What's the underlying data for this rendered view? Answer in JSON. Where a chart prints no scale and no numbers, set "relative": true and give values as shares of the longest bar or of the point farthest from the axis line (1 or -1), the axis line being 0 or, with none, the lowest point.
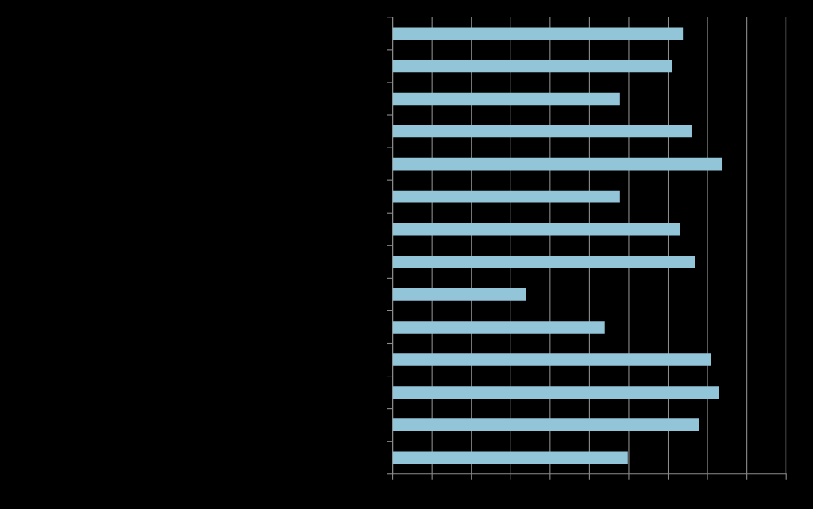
{
  "chart_data": {
    "type": "bar",
    "orientation": "horizontal",
    "relative": true,
    "grid": "x",
    "categories": [
      null,
      null,
      null,
      null,
      null,
      null,
      null,
      null,
      null,
      null,
      null,
      null,
      null,
      null
    ],
    "values": [
      0.88,
      0.846,
      0.689,
      0.906,
      1,
      0.689,
      0.87,
      0.918,
      0.405,
      0.643,
      0.964,
      0.99,
      0.928,
      0.713
    ],
    "color": "#92c5d8"
  }
}
